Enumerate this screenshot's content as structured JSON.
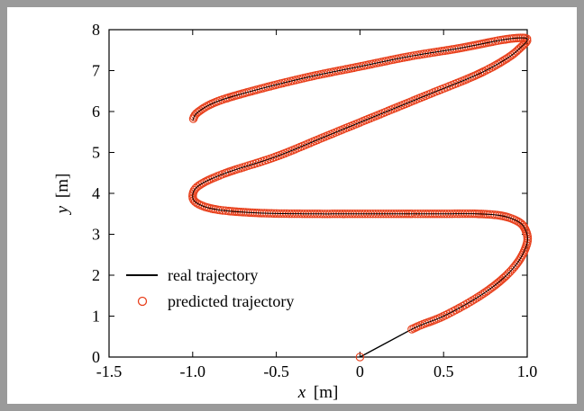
{
  "chart_data": {
    "type": "line",
    "xlabel": "x [m]",
    "xlabel_var": "x",
    "xlabel_unit": "[m]",
    "ylabel": "y [m]",
    "ylabel_var": "y",
    "ylabel_unit": "[m]",
    "xlim": [
      -1.5,
      1.0
    ],
    "ylim": [
      0,
      8
    ],
    "xticks": [
      -1.5,
      -1.0,
      -0.5,
      0,
      0.5,
      1.0
    ],
    "xtick_labels": [
      "-1.5",
      "-1.0",
      "-0.5",
      "0",
      "0.5",
      "1.0"
    ],
    "yticks": [
      0,
      1,
      2,
      3,
      4,
      5,
      6,
      7,
      8
    ],
    "ytick_labels": [
      "0",
      "1",
      "2",
      "3",
      "4",
      "5",
      "6",
      "7",
      "8"
    ],
    "grid": false,
    "legend_position": "lower-left",
    "series": [
      {
        "name": "real trajectory",
        "style": "solid line",
        "color": "#000000",
        "x": [
          0.0,
          0.31,
          0.5,
          0.7,
          0.85,
          0.95,
          1.0,
          0.99,
          0.95,
          0.85,
          0.7,
          0.5,
          0.3,
          0.0,
          -0.3,
          -0.6,
          -0.85,
          -0.97,
          -1.0,
          -0.96,
          -0.8,
          -0.5,
          -0.2,
          0.1,
          0.4,
          0.7,
          0.88,
          0.97,
          1.0,
          0.97,
          0.85,
          0.6,
          0.3,
          0.0,
          -0.3,
          -0.6,
          -0.85,
          -0.97,
          -1.0
        ],
        "y": [
          0.0,
          0.68,
          1.0,
          1.45,
          1.9,
          2.35,
          2.8,
          3.1,
          3.3,
          3.45,
          3.5,
          3.5,
          3.5,
          3.5,
          3.5,
          3.52,
          3.6,
          3.75,
          3.95,
          4.2,
          4.5,
          4.9,
          5.4,
          5.9,
          6.4,
          6.9,
          7.3,
          7.6,
          7.75,
          7.8,
          7.75,
          7.55,
          7.35,
          7.1,
          6.85,
          6.55,
          6.25,
          5.98,
          5.78
        ]
      },
      {
        "name": "predicted trajectory",
        "style": "open circle markers",
        "color": "#e8401c",
        "x": [
          0.0,
          0.31
        ],
        "y": [
          0.0,
          0.68
        ],
        "note_dense": "markers follow real trajectory continuously from (0.31, 0.68) to (-1.0, 5.78)"
      }
    ],
    "legend": {
      "entries": [
        "real trajectory",
        "predicted trajectory"
      ]
    },
    "colors": {
      "line": "#000000",
      "markers": "#e8401c",
      "frame": "#9a9a9a"
    }
  }
}
